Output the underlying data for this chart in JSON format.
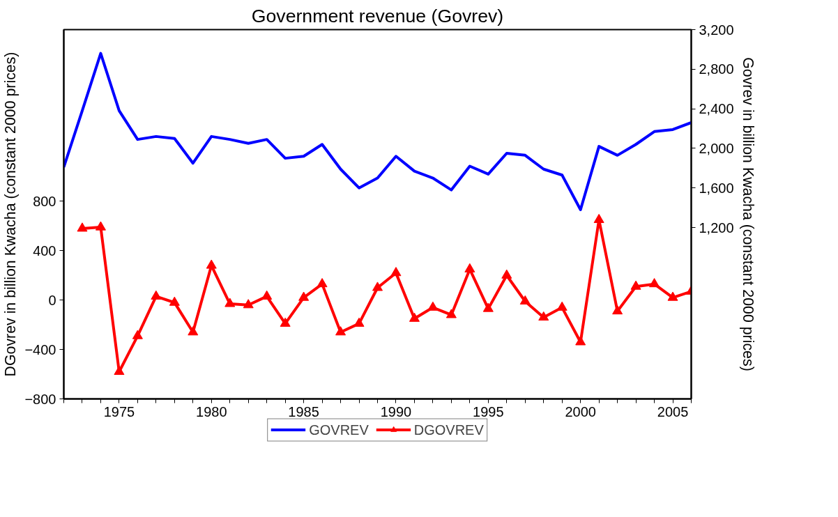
{
  "chart_data": {
    "type": "line",
    "title": "Government revenue (Govrev)",
    "ylabel": "DGovrev in billion Kwacha (constant 2000 prices)",
    "y2label": "Govrev in billion Kwacha (constant 2000 prices)",
    "x": [
      1972,
      1973,
      1974,
      1975,
      1976,
      1977,
      1978,
      1979,
      1980,
      1981,
      1982,
      1983,
      1984,
      1985,
      1986,
      1987,
      1988,
      1989,
      1990,
      1991,
      1992,
      1993,
      1994,
      1995,
      1996,
      1997,
      1998,
      1999,
      2000,
      2001,
      2002,
      2003,
      2004,
      2005,
      2006
    ],
    "series": [
      {
        "name": "GOVREV",
        "color": "#0000ff",
        "axis": "y2",
        "marker": "none",
        "values": [
          1810,
          2380,
          2960,
          2380,
          2090,
          2120,
          2100,
          1850,
          2120,
          2090,
          2050,
          2090,
          1900,
          1920,
          2040,
          1790,
          1600,
          1700,
          1920,
          1770,
          1700,
          1580,
          1820,
          1740,
          1950,
          1930,
          1790,
          1730,
          1380,
          2020,
          1930,
          2040,
          2170,
          2190,
          2260
        ]
      },
      {
        "name": "DGOVREV",
        "color": "#ff0000",
        "axis": "y",
        "marker": "triangle",
        "values": [
          null,
          580,
          590,
          -580,
          -290,
          30,
          -20,
          -260,
          280,
          -30,
          -40,
          30,
          -190,
          20,
          130,
          -260,
          -190,
          100,
          220,
          -150,
          -60,
          -120,
          250,
          -70,
          200,
          -10,
          -140,
          -60,
          -340,
          650,
          -90,
          110,
          130,
          20,
          70
        ]
      }
    ],
    "xlim": [
      1972,
      2006
    ],
    "xticks": [
      {
        "value": 1972,
        "label": null
      },
      {
        "value": 1973,
        "label": null
      },
      {
        "value": 1974,
        "label": null
      },
      1975,
      {
        "value": 1976,
        "label": null
      },
      {
        "value": 1977,
        "label": null
      },
      {
        "value": 1978,
        "label": null
      },
      {
        "value": 1979,
        "label": null
      },
      1980,
      {
        "value": 1981,
        "label": null
      },
      {
        "value": 1982,
        "label": null
      },
      {
        "value": 1983,
        "label": null
      },
      {
        "value": 1984,
        "label": null
      },
      1985,
      {
        "value": 1986,
        "label": null
      },
      {
        "value": 1987,
        "label": null
      },
      {
        "value": 1988,
        "label": null
      },
      {
        "value": 1989,
        "label": null
      },
      1990,
      {
        "value": 1991,
        "label": null
      },
      {
        "value": 1992,
        "label": null
      },
      {
        "value": 1993,
        "label": null
      },
      {
        "value": 1994,
        "label": null
      },
      1995,
      {
        "value": 1996,
        "label": null
      },
      {
        "value": 1997,
        "label": null
      },
      {
        "value": 1998,
        "label": null
      },
      {
        "value": 1999,
        "label": null
      },
      2000,
      {
        "value": 2001,
        "label": null
      },
      {
        "value": 2002,
        "label": null
      },
      {
        "value": 2003,
        "label": null
      },
      {
        "value": 2004,
        "label": null
      },
      2005,
      {
        "value": 2006,
        "label": null
      }
    ],
    "ylim": [
      -800,
      2190
    ],
    "yticks": [
      -800,
      -400,
      0,
      400,
      800
    ],
    "y2lim": [
      -532,
      3200
    ],
    "y2ticks": [
      {
        "value": 1200,
        "label": "1,200"
      },
      {
        "value": 1600,
        "label": "1,600"
      },
      {
        "value": 2000,
        "label": "2,000"
      },
      {
        "value": 2400,
        "label": "2,400"
      },
      {
        "value": 2800,
        "label": "2,800"
      },
      {
        "value": 3200,
        "label": "3,200"
      }
    ],
    "grid": false,
    "legend": "bottom",
    "line_style": "solid"
  }
}
